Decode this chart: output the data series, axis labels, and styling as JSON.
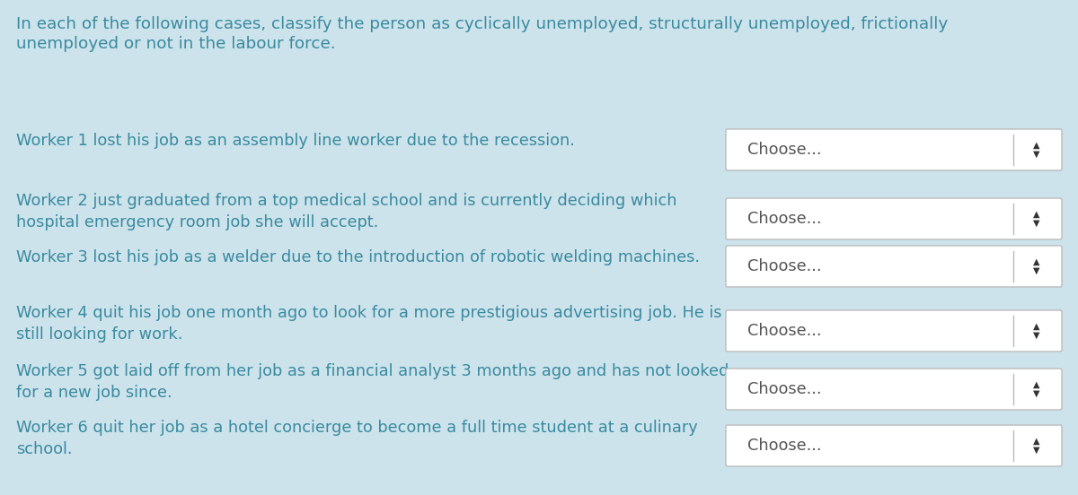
{
  "bg_color": "#cce3ec",
  "title_text_line1": "In each of the following cases, classify the person as cyclically unemployed, structurally unemployed, frictionally",
  "title_text_line2": "unemployed or not in the labour force.",
  "workers": [
    "Worker 1 lost his job as an assembly line worker due to the recession.",
    "Worker 2 just graduated from a top medical school and is currently deciding which\nhospital emergency room job she will accept.",
    "Worker 3 lost his job as a welder due to the introduction of robotic welding machines.",
    "Worker 4 quit his job one month ago to look for a more prestigious advertising job. He is\nstill looking for work.",
    "Worker 5 got laid off from her job as a financial analyst 3 months ago and has not looked\nfor a new job since.",
    "Worker 6 quit her job as a hotel concierge to become a full time student at a culinary\nschool."
  ],
  "dropdown_label": "Choose...",
  "dropdown_color": "#ffffff",
  "dropdown_border": "#bbbbbb",
  "text_color": "#3a8a9e",
  "choose_color": "#555555",
  "arrow_color": "#333333",
  "title_fontsize": 13.2,
  "worker_fontsize": 12.8,
  "dropdown_fontsize": 12.8,
  "fig_width": 12.0,
  "fig_height": 5.52,
  "dpi": 100
}
